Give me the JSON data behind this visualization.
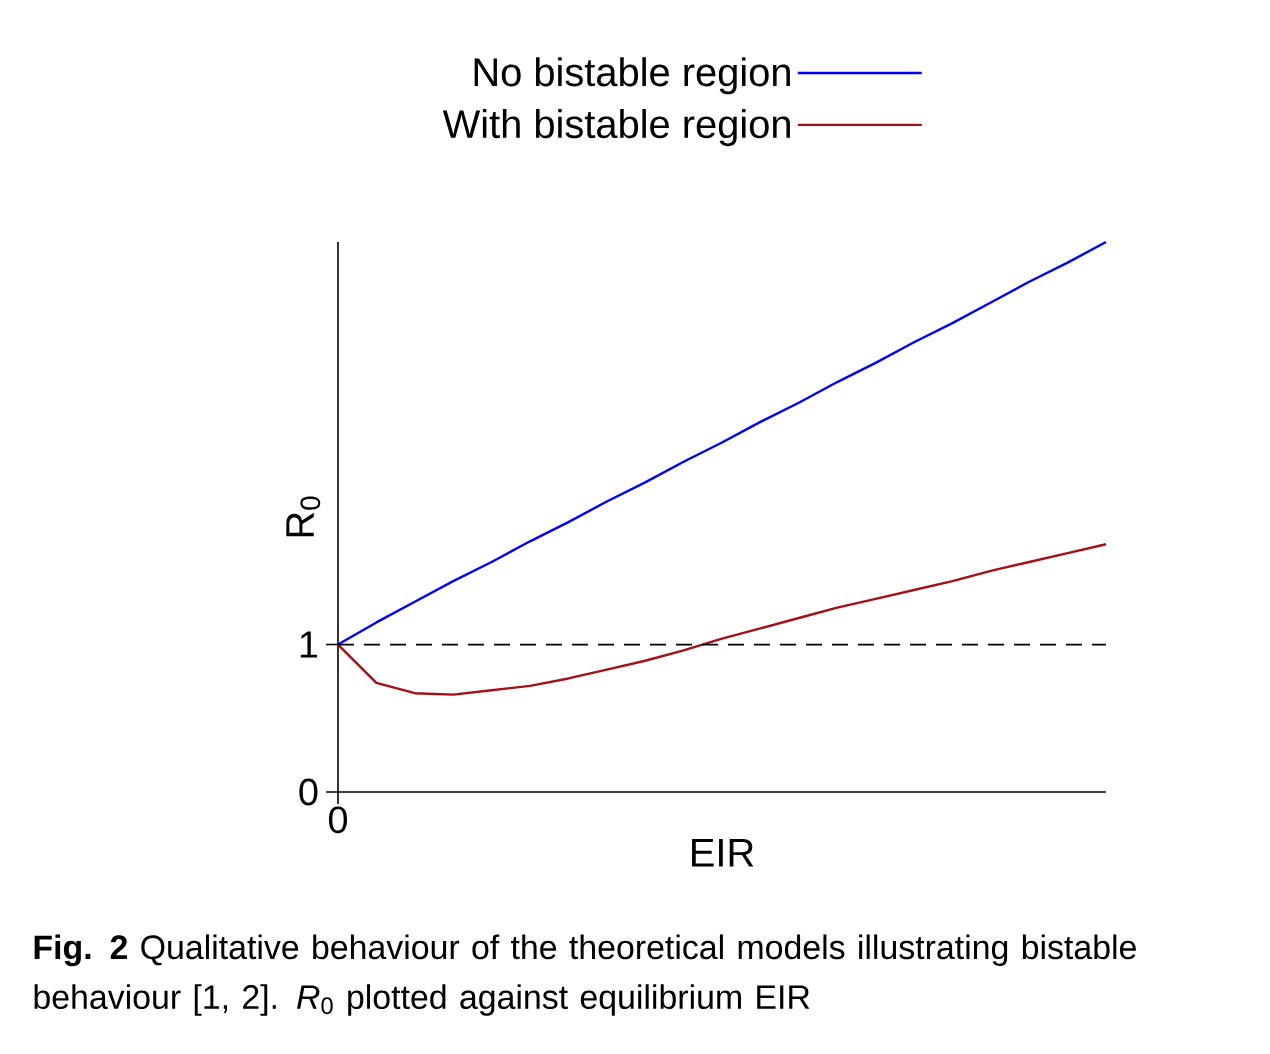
{
  "chart_data": {
    "type": "line",
    "xlabel": "EIR",
    "ylabel": "R$_{0}$",
    "categories": [
      null,
      null,
      null,
      null,
      null,
      null,
      null,
      null,
      null,
      null,
      null,
      null,
      null,
      null,
      null,
      null,
      null,
      null,
      null,
      null,
      null
    ],
    "ylim": [
      0,
      3.73
    ],
    "yticks": [
      {
        "value": 0,
        "label": "0"
      },
      {
        "value": 1,
        "label": "1"
      }
    ],
    "legend": "top",
    "marker": "none",
    "series": [
      {
        "name": "No bistable region",
        "color": "#0000ff",
        "values": [
          1.0,
          1.15,
          1.29,
          1.43,
          1.56,
          1.7,
          1.83,
          1.97,
          2.1,
          2.24,
          2.37,
          2.51,
          2.64,
          2.78,
          2.91,
          3.05,
          3.18,
          3.32,
          3.46,
          3.59,
          3.73
        ]
      },
      {
        "name": "With bistable region",
        "color": "#a50f15",
        "values": [
          1.0,
          0.74,
          0.67,
          0.66,
          0.69,
          0.72,
          0.77,
          0.83,
          0.89,
          0.96,
          1.04,
          1.11,
          1.18,
          1.25,
          1.31,
          1.37,
          1.43,
          1.5,
          1.56,
          1.62,
          1.68
        ]
      }
    ],
    "ref_lines": [
      {
        "axis": "y",
        "value": 1,
        "line_style": "dashed",
        "color": "#000000"
      }
    ],
    "annotations": [
      "0",
      "**Fig. 2** Qualitative behaviour of the theoretical models illustrating bistable behaviour [1, 2]. *R*$_{0}$ plotted against equilibrium EIR"
    ]
  }
}
